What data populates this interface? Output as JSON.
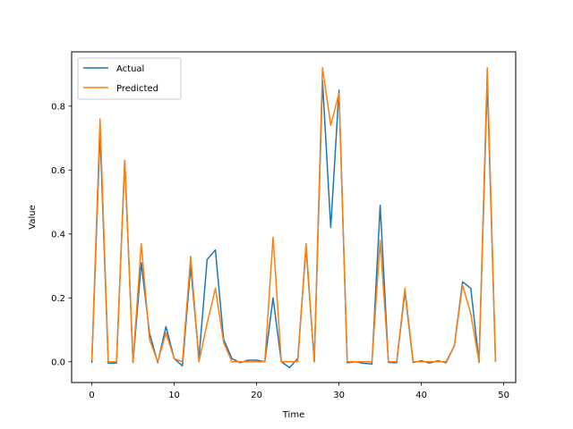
{
  "chart_data": {
    "type": "line",
    "title": "",
    "xlabel": "Time",
    "ylabel": "Value",
    "xlim": [
      -2.45,
      51.45
    ],
    "ylim": [
      -0.065,
      0.97
    ],
    "xticks": [
      0,
      10,
      20,
      30,
      40,
      50
    ],
    "yticks": [
      0.0,
      0.2,
      0.4,
      0.6,
      0.8
    ],
    "grid": false,
    "legend_position": "top-left",
    "x": [
      0,
      1,
      2,
      3,
      4,
      5,
      6,
      7,
      8,
      9,
      10,
      11,
      12,
      13,
      14,
      15,
      16,
      17,
      18,
      19,
      20,
      21,
      22,
      23,
      24,
      25,
      26,
      27,
      28,
      29,
      30,
      31,
      32,
      33,
      34,
      35,
      36,
      37,
      38,
      39,
      40,
      41,
      42,
      43,
      44,
      45,
      46,
      47,
      48,
      49
    ],
    "series": [
      {
        "name": "Actual",
        "color": "#1f77b4",
        "values": [
          -0.003,
          0.72,
          -0.005,
          -0.004,
          0.63,
          -0.002,
          0.31,
          0.09,
          -0.003,
          0.11,
          0.01,
          -0.013,
          0.3,
          0.01,
          0.32,
          0.35,
          0.07,
          0.01,
          -0.003,
          0.005,
          0.005,
          0.0,
          0.2,
          0.0,
          -0.018,
          0.01,
          0.36,
          0.0,
          0.88,
          0.42,
          0.85,
          -0.003,
          0.0,
          -0.005,
          -0.007,
          0.49,
          -0.002,
          -0.003,
          0.22,
          -0.002,
          0.003,
          -0.004,
          0.003,
          -0.003,
          0.05,
          0.25,
          0.23,
          -0.002,
          0.88,
          0.0
        ]
      },
      {
        "name": "Predicted",
        "color": "#ff7f0e",
        "values": [
          0.005,
          0.76,
          0.0,
          0.0,
          0.63,
          0.0,
          0.37,
          0.07,
          0.0,
          0.09,
          0.01,
          0.0,
          0.33,
          0.0,
          0.12,
          0.23,
          0.06,
          0.0,
          0.0,
          0.0,
          0.0,
          0.0,
          0.39,
          0.0,
          0.0,
          0.0,
          0.37,
          0.0,
          0.92,
          0.74,
          0.84,
          0.0,
          0.0,
          0.0,
          0.0,
          0.38,
          0.0,
          0.0,
          0.23,
          0.0,
          0.0,
          0.0,
          0.0,
          0.0,
          0.05,
          0.24,
          0.15,
          0.0,
          0.92,
          0.0
        ]
      }
    ]
  }
}
